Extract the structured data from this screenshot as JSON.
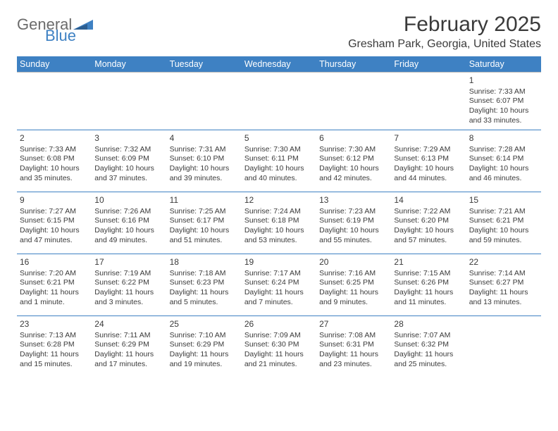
{
  "logo": {
    "text1": "General",
    "text2": "Blue",
    "shape_color": "#3e81c3"
  },
  "header": {
    "title": "February 2025",
    "location": "Gresham Park, Georgia, United States"
  },
  "style": {
    "header_bg": "#3e81c3",
    "header_text": "#ffffff",
    "border_color": "#3e81c3",
    "text_color": "#3a3a3a"
  },
  "weekdays": [
    "Sunday",
    "Monday",
    "Tuesday",
    "Wednesday",
    "Thursday",
    "Friday",
    "Saturday"
  ],
  "weeks": [
    [
      null,
      null,
      null,
      null,
      null,
      null,
      {
        "n": "1",
        "l": [
          "Sunrise: 7:33 AM",
          "Sunset: 6:07 PM",
          "Daylight: 10 hours and 33 minutes."
        ]
      }
    ],
    [
      {
        "n": "2",
        "l": [
          "Sunrise: 7:33 AM",
          "Sunset: 6:08 PM",
          "Daylight: 10 hours and 35 minutes."
        ]
      },
      {
        "n": "3",
        "l": [
          "Sunrise: 7:32 AM",
          "Sunset: 6:09 PM",
          "Daylight: 10 hours and 37 minutes."
        ]
      },
      {
        "n": "4",
        "l": [
          "Sunrise: 7:31 AM",
          "Sunset: 6:10 PM",
          "Daylight: 10 hours and 39 minutes."
        ]
      },
      {
        "n": "5",
        "l": [
          "Sunrise: 7:30 AM",
          "Sunset: 6:11 PM",
          "Daylight: 10 hours and 40 minutes."
        ]
      },
      {
        "n": "6",
        "l": [
          "Sunrise: 7:30 AM",
          "Sunset: 6:12 PM",
          "Daylight: 10 hours and 42 minutes."
        ]
      },
      {
        "n": "7",
        "l": [
          "Sunrise: 7:29 AM",
          "Sunset: 6:13 PM",
          "Daylight: 10 hours and 44 minutes."
        ]
      },
      {
        "n": "8",
        "l": [
          "Sunrise: 7:28 AM",
          "Sunset: 6:14 PM",
          "Daylight: 10 hours and 46 minutes."
        ]
      }
    ],
    [
      {
        "n": "9",
        "l": [
          "Sunrise: 7:27 AM",
          "Sunset: 6:15 PM",
          "Daylight: 10 hours and 47 minutes."
        ]
      },
      {
        "n": "10",
        "l": [
          "Sunrise: 7:26 AM",
          "Sunset: 6:16 PM",
          "Daylight: 10 hours and 49 minutes."
        ]
      },
      {
        "n": "11",
        "l": [
          "Sunrise: 7:25 AM",
          "Sunset: 6:17 PM",
          "Daylight: 10 hours and 51 minutes."
        ]
      },
      {
        "n": "12",
        "l": [
          "Sunrise: 7:24 AM",
          "Sunset: 6:18 PM",
          "Daylight: 10 hours and 53 minutes."
        ]
      },
      {
        "n": "13",
        "l": [
          "Sunrise: 7:23 AM",
          "Sunset: 6:19 PM",
          "Daylight: 10 hours and 55 minutes."
        ]
      },
      {
        "n": "14",
        "l": [
          "Sunrise: 7:22 AM",
          "Sunset: 6:20 PM",
          "Daylight: 10 hours and 57 minutes."
        ]
      },
      {
        "n": "15",
        "l": [
          "Sunrise: 7:21 AM",
          "Sunset: 6:21 PM",
          "Daylight: 10 hours and 59 minutes."
        ]
      }
    ],
    [
      {
        "n": "16",
        "l": [
          "Sunrise: 7:20 AM",
          "Sunset: 6:21 PM",
          "Daylight: 11 hours and 1 minute."
        ]
      },
      {
        "n": "17",
        "l": [
          "Sunrise: 7:19 AM",
          "Sunset: 6:22 PM",
          "Daylight: 11 hours and 3 minutes."
        ]
      },
      {
        "n": "18",
        "l": [
          "Sunrise: 7:18 AM",
          "Sunset: 6:23 PM",
          "Daylight: 11 hours and 5 minutes."
        ]
      },
      {
        "n": "19",
        "l": [
          "Sunrise: 7:17 AM",
          "Sunset: 6:24 PM",
          "Daylight: 11 hours and 7 minutes."
        ]
      },
      {
        "n": "20",
        "l": [
          "Sunrise: 7:16 AM",
          "Sunset: 6:25 PM",
          "Daylight: 11 hours and 9 minutes."
        ]
      },
      {
        "n": "21",
        "l": [
          "Sunrise: 7:15 AM",
          "Sunset: 6:26 PM",
          "Daylight: 11 hours and 11 minutes."
        ]
      },
      {
        "n": "22",
        "l": [
          "Sunrise: 7:14 AM",
          "Sunset: 6:27 PM",
          "Daylight: 11 hours and 13 minutes."
        ]
      }
    ],
    [
      {
        "n": "23",
        "l": [
          "Sunrise: 7:13 AM",
          "Sunset: 6:28 PM",
          "Daylight: 11 hours and 15 minutes."
        ]
      },
      {
        "n": "24",
        "l": [
          "Sunrise: 7:11 AM",
          "Sunset: 6:29 PM",
          "Daylight: 11 hours and 17 minutes."
        ]
      },
      {
        "n": "25",
        "l": [
          "Sunrise: 7:10 AM",
          "Sunset: 6:29 PM",
          "Daylight: 11 hours and 19 minutes."
        ]
      },
      {
        "n": "26",
        "l": [
          "Sunrise: 7:09 AM",
          "Sunset: 6:30 PM",
          "Daylight: 11 hours and 21 minutes."
        ]
      },
      {
        "n": "27",
        "l": [
          "Sunrise: 7:08 AM",
          "Sunset: 6:31 PM",
          "Daylight: 11 hours and 23 minutes."
        ]
      },
      {
        "n": "28",
        "l": [
          "Sunrise: 7:07 AM",
          "Sunset: 6:32 PM",
          "Daylight: 11 hours and 25 minutes."
        ]
      },
      null
    ]
  ]
}
